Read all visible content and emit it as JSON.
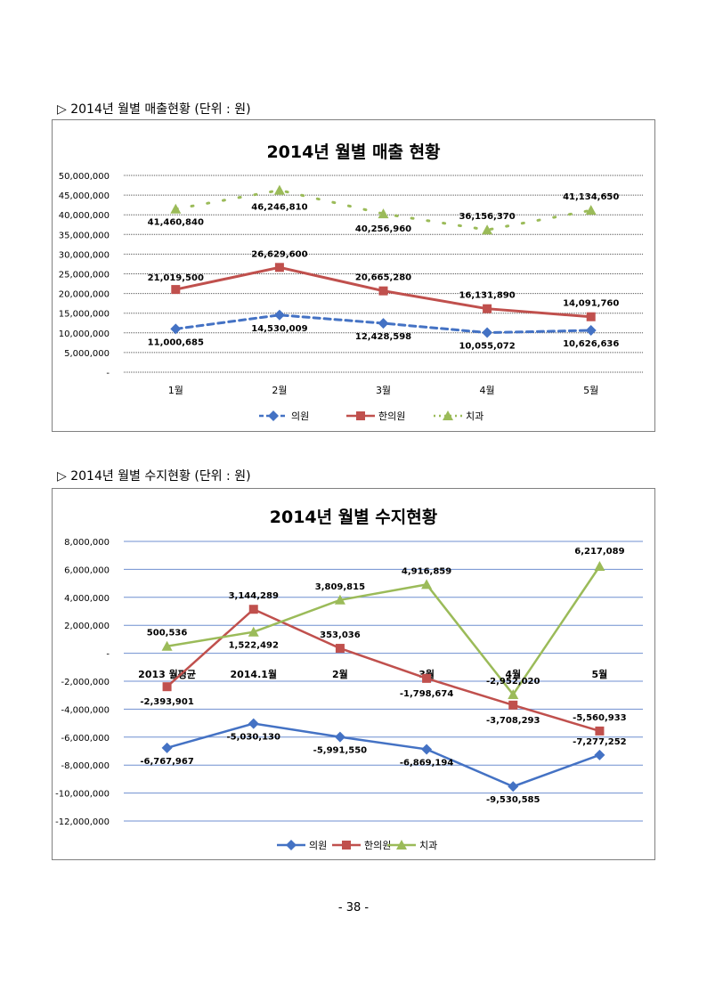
{
  "sections": [
    {
      "title": "▷ 2014년 월별 매출현황 (단위 : 원)"
    },
    {
      "title": "▷ 2014년 월별 수지현황 (단위 : 원)"
    }
  ],
  "page_number": "- 38 -",
  "chart_data": [
    {
      "type": "line",
      "title": "2014년 월별 매출 현황",
      "categories": [
        "1월",
        "2월",
        "3월",
        "4월",
        "5월"
      ],
      "ylim": [
        0,
        50000000
      ],
      "ytick_step": 5000000,
      "ytick_labels": [
        "-",
        "5,000,000",
        "10,000,000",
        "15,000,000",
        "20,000,000",
        "25,000,000",
        "30,000,000",
        "35,000,000",
        "40,000,000",
        "45,000,000",
        "50,000,000"
      ],
      "grid": true,
      "legend_position": "bottom",
      "series": [
        {
          "name": "의원",
          "color": "#4472C4",
          "marker": "diamond",
          "dash": "dashed",
          "values": [
            11000685,
            14530009,
            12428598,
            10055072,
            10626636
          ],
          "labels": [
            "11,000,685",
            "14,530,009",
            "12,428,598",
            "10,055,072",
            "10,626,636"
          ]
        },
        {
          "name": "한의원",
          "color": "#C0504D",
          "marker": "square",
          "dash": "solid",
          "values": [
            21019500,
            26629600,
            20665280,
            16131890,
            14091760
          ],
          "labels": [
            "21,019,500",
            "26,629,600",
            "20,665,280",
            "16,131,890",
            "14,091,760"
          ]
        },
        {
          "name": "치과",
          "color": "#9BBB59",
          "marker": "triangle",
          "dash": "dotted",
          "values": [
            41460840,
            46246810,
            40256960,
            36156370,
            41134650
          ],
          "labels": [
            "41,460,840",
            "46,246,810",
            "40,256,960",
            "36,156,370",
            "41,134,650"
          ]
        }
      ]
    },
    {
      "type": "line",
      "title": "2014년 월별 수지현황",
      "categories": [
        "2013 월평균",
        "2014.1월",
        "2월",
        "3월",
        "4월",
        "5월"
      ],
      "ylim": [
        -12000000,
        8000000
      ],
      "ytick_step": 2000000,
      "ytick_labels": [
        "-12,000,000",
        "-10,000,000",
        "-8,000,000",
        "-6,000,000",
        "-4,000,000",
        "-2,000,000",
        "-",
        "2,000,000",
        "4,000,000",
        "6,000,000",
        "8,000,000"
      ],
      "grid": true,
      "legend_position": "bottom",
      "series": [
        {
          "name": "의원",
          "color": "#4472C4",
          "marker": "diamond",
          "dash": "solid",
          "values": [
            -6767967,
            -5030130,
            -5991550,
            -6869194,
            -9530585,
            -7277252
          ],
          "labels": [
            "-6,767,967",
            "-5,030,130",
            "-5,991,550",
            "-6,869,194",
            "-9,530,585",
            "-7,277,252"
          ]
        },
        {
          "name": "한의원",
          "color": "#C0504D",
          "marker": "square",
          "dash": "solid",
          "values": [
            -2393901,
            3144289,
            353036,
            -1798674,
            -3708293,
            -5560933
          ],
          "labels": [
            "-2,393,901",
            "3,144,289",
            "353,036",
            "-1,798,674",
            "-3,708,293",
            "-5,560,933"
          ]
        },
        {
          "name": "치과",
          "color": "#9BBB59",
          "marker": "triangle",
          "dash": "solid",
          "values": [
            500536,
            1522492,
            3809815,
            4916859,
            -2952020,
            6217089
          ],
          "labels": [
            "500,536",
            "1,522,492",
            "3,809,815",
            "4,916,859",
            "-2,952,020",
            "6,217,089"
          ]
        }
      ]
    }
  ]
}
